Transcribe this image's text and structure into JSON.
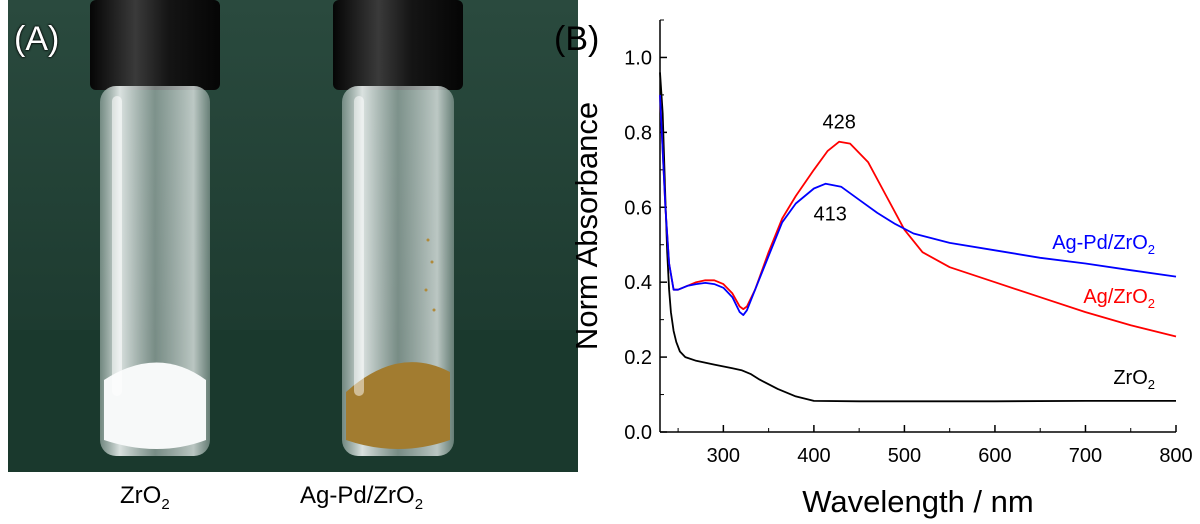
{
  "photo": {
    "label": "(A)",
    "vials": [
      {
        "name": "ZrO",
        "sub": "2",
        "powder_color": "#f4f6f6"
      },
      {
        "name": "Ag-Pd/ZrO",
        "sub": "2",
        "powder_color": "#a07a2e"
      }
    ],
    "colors": {
      "background": "#1d3a30",
      "cap": "#111111",
      "glass": "#c9d4d2"
    }
  },
  "chart": {
    "label": "(B)",
    "colors": {
      "ZrO2": "#000000",
      "Ag/ZrO2": "#ff0000",
      "Ag-Pd/ZrO2": "#0000ff"
    }
  },
  "chart_data": {
    "type": "line",
    "title": "",
    "xlabel": "Wavelength / nm",
    "ylabel": "Norm Absorbance",
    "xlim": [
      230,
      800
    ],
    "ylim": [
      0.0,
      1.1
    ],
    "xticks": [
      300,
      400,
      500,
      600,
      700,
      800
    ],
    "yticks": [
      0.0,
      0.2,
      0.4,
      0.6,
      0.8,
      1.0
    ],
    "xtick_labels": [
      "300",
      "400",
      "500",
      "600",
      "700",
      "800"
    ],
    "ytick_labels": [
      "0.0",
      "0.2",
      "0.4",
      "0.6",
      "0.8",
      "1.0"
    ],
    "grid": false,
    "series": [
      {
        "name": "ZrO2",
        "label": "ZrO",
        "sub": "2",
        "color": "#000000",
        "x": [
          230,
          233,
          236,
          238,
          240,
          242,
          245,
          248,
          252,
          258,
          270,
          290,
          310,
          320,
          330,
          340,
          360,
          380,
          400,
          450,
          500,
          600,
          700,
          800
        ],
        "y": [
          0.96,
          0.85,
          0.62,
          0.48,
          0.38,
          0.32,
          0.27,
          0.24,
          0.215,
          0.2,
          0.19,
          0.18,
          0.17,
          0.165,
          0.155,
          0.14,
          0.115,
          0.095,
          0.083,
          0.082,
          0.082,
          0.082,
          0.083,
          0.083
        ]
      },
      {
        "name": "Ag/ZrO2",
        "label": "Ag/ZrO",
        "sub": "2",
        "color": "#ff0000",
        "x": [
          230,
          233,
          236,
          240,
          245,
          250,
          260,
          270,
          280,
          290,
          300,
          310,
          318,
          322,
          326,
          335,
          350,
          365,
          380,
          400,
          415,
          428,
          440,
          460,
          480,
          500,
          520,
          550,
          600,
          650,
          700,
          750,
          800
        ],
        "y": [
          0.9,
          0.75,
          0.6,
          0.45,
          0.38,
          0.38,
          0.39,
          0.4,
          0.405,
          0.405,
          0.395,
          0.37,
          0.335,
          0.328,
          0.335,
          0.38,
          0.48,
          0.57,
          0.63,
          0.7,
          0.75,
          0.775,
          0.77,
          0.72,
          0.63,
          0.54,
          0.48,
          0.44,
          0.4,
          0.36,
          0.32,
          0.285,
          0.255
        ]
      },
      {
        "name": "Ag-Pd/ZrO2",
        "label": "Ag-Pd/ZrO",
        "sub": "2",
        "color": "#0000ff",
        "x": [
          230,
          233,
          236,
          240,
          245,
          250,
          260,
          270,
          280,
          290,
          300,
          310,
          318,
          322,
          326,
          335,
          350,
          365,
          380,
          400,
          413,
          430,
          450,
          470,
          490,
          510,
          550,
          600,
          650,
          700,
          750,
          800
        ],
        "y": [
          0.9,
          0.75,
          0.6,
          0.45,
          0.38,
          0.38,
          0.39,
          0.395,
          0.398,
          0.395,
          0.385,
          0.36,
          0.32,
          0.312,
          0.325,
          0.38,
          0.47,
          0.56,
          0.61,
          0.65,
          0.663,
          0.655,
          0.62,
          0.585,
          0.555,
          0.53,
          0.505,
          0.485,
          0.465,
          0.45,
          0.432,
          0.415
        ]
      }
    ],
    "annotations": [
      {
        "text": "428",
        "x": 428,
        "y": 0.81
      },
      {
        "text": "413",
        "x": 418,
        "y": 0.565
      }
    ]
  }
}
